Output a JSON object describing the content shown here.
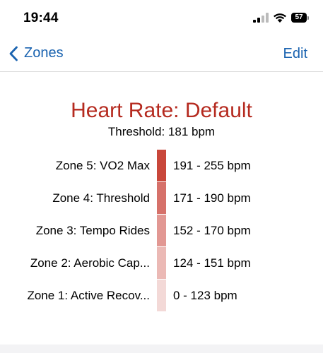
{
  "status_bar": {
    "time": "19:44",
    "battery_level": "57",
    "icons": [
      "signal-icon",
      "wifi-icon",
      "battery-icon"
    ]
  },
  "nav": {
    "back_label": "Zones",
    "edit_label": "Edit",
    "back_icon": "chevron-left-icon"
  },
  "header": {
    "title": "Heart Rate: Default",
    "threshold": "Threshold: 181 bpm"
  },
  "colors": {
    "accent": "#1a63b0",
    "title": "#b52a1f"
  },
  "zones": [
    {
      "name": "Zone 5: VO2 Max",
      "range": "191 - 255 bpm",
      "color": "#c9473b"
    },
    {
      "name": "Zone 4: Threshold",
      "range": "171 - 190 bpm",
      "color": "#d6716a"
    },
    {
      "name": "Zone 3: Tempo Rides",
      "range": "152 - 170 bpm",
      "color": "#e29893"
    },
    {
      "name": "Zone 2: Aerobic Cap...",
      "range": "124 - 151 bpm",
      "color": "#ebb9b5"
    },
    {
      "name": "Zone 1: Active Recov...",
      "range": "0 - 123 bpm",
      "color": "#f3d9d7"
    }
  ]
}
